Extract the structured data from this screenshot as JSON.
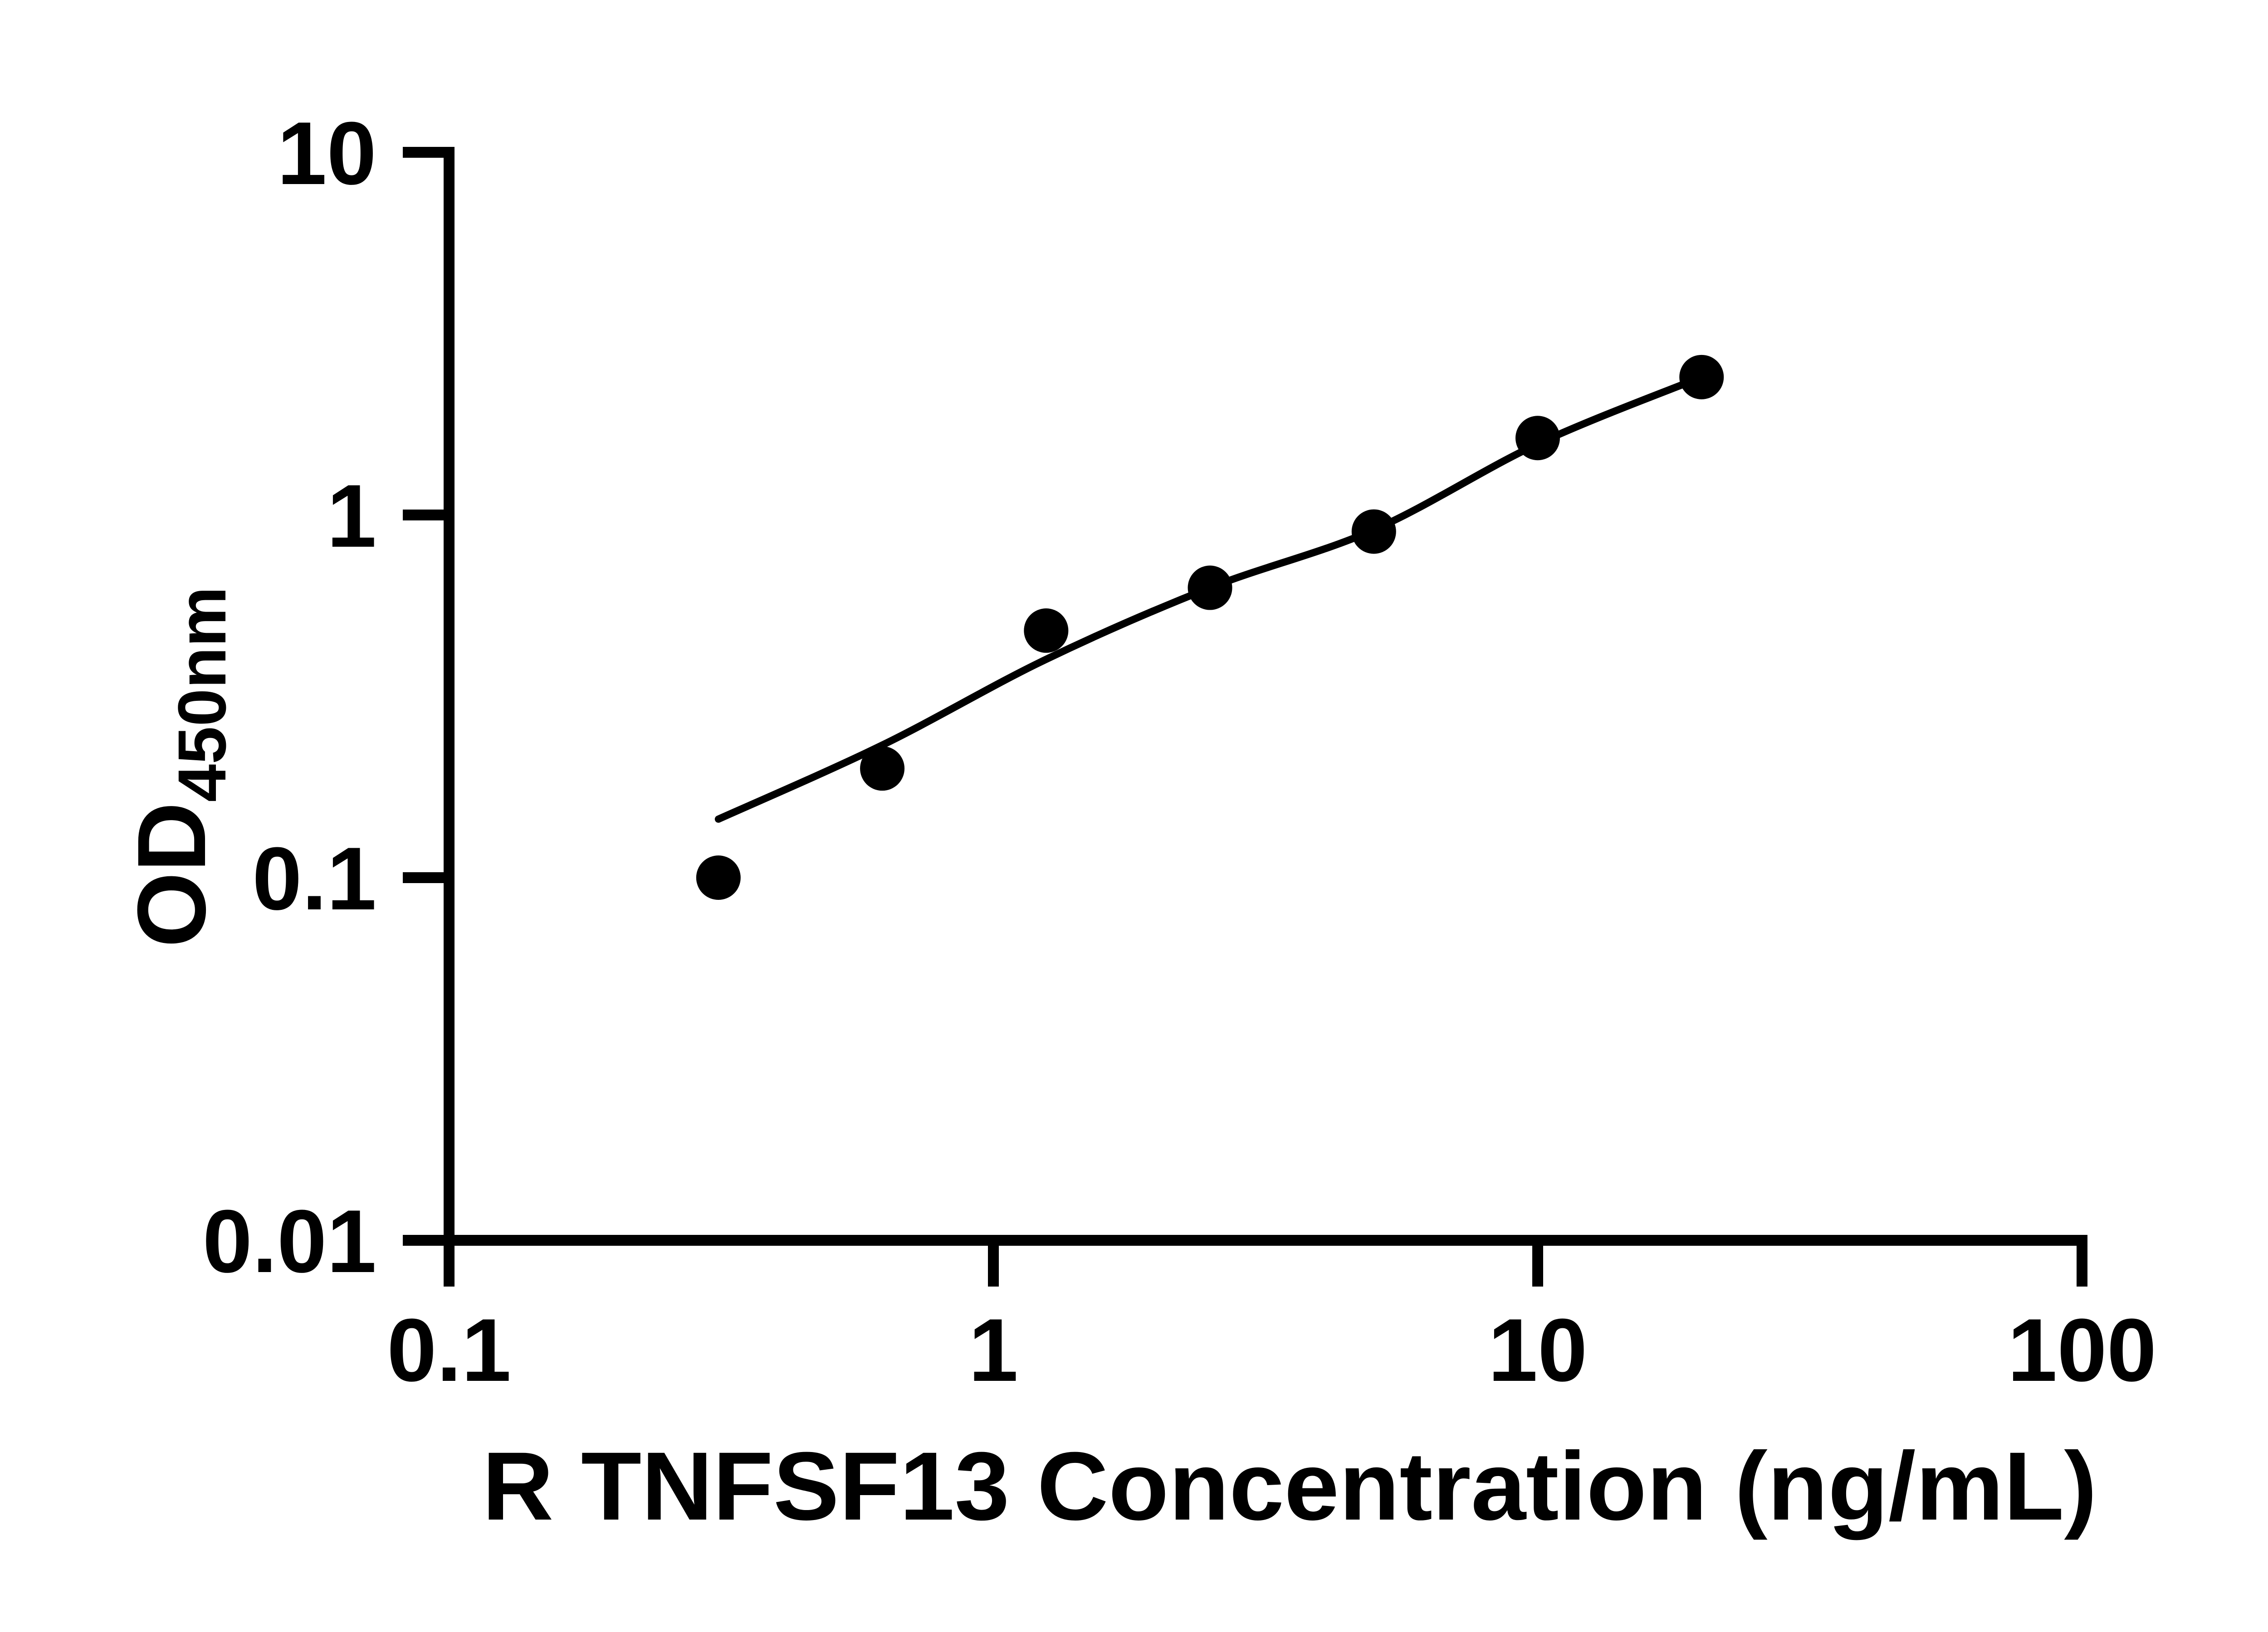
{
  "figure": {
    "background": "#ffffff",
    "ink_color": "#000000"
  },
  "chart_data": {
    "type": "scatter",
    "title": "",
    "xlabel": "R TNFSF13 Concentration (ng/mL)",
    "ylabel": "OD450nm",
    "ylabel_rich": {
      "main": "OD",
      "subscript": "450nm"
    },
    "x_scale": "log",
    "y_scale": "log",
    "xlim": [
      0.1,
      100
    ],
    "ylim": [
      0.01,
      10
    ],
    "grid": false,
    "legend": null,
    "x_ticks": [
      {
        "value": 0.1,
        "label": "0.1"
      },
      {
        "value": 1,
        "label": "1"
      },
      {
        "value": 10,
        "label": "10"
      },
      {
        "value": 100,
        "label": "100"
      }
    ],
    "y_ticks": [
      {
        "value": 10,
        "label": "10"
      },
      {
        "value": 1,
        "label": "1"
      },
      {
        "value": 0.1,
        "label": "0.1"
      },
      {
        "value": 0.01,
        "label": "0.01"
      }
    ],
    "series": [
      {
        "name": "standard-curve-points",
        "type": "scatter",
        "marker": "filled-circle",
        "color": "#000000",
        "x": [
          0.3125,
          0.625,
          1.25,
          2.5,
          5,
          10,
          20
        ],
        "y": [
          0.1,
          0.2,
          0.48,
          0.63,
          0.9,
          1.63,
          2.4
        ]
      }
    ],
    "fit_curve": {
      "name": "fitted-trend-line",
      "type": "smooth",
      "color": "#000000",
      "x": [
        0.3125,
        0.625,
        1.25,
        2.5,
        5,
        10,
        20
      ],
      "y": [
        0.145,
        0.232,
        0.4,
        0.63,
        0.91,
        1.57,
        2.4
      ]
    }
  }
}
